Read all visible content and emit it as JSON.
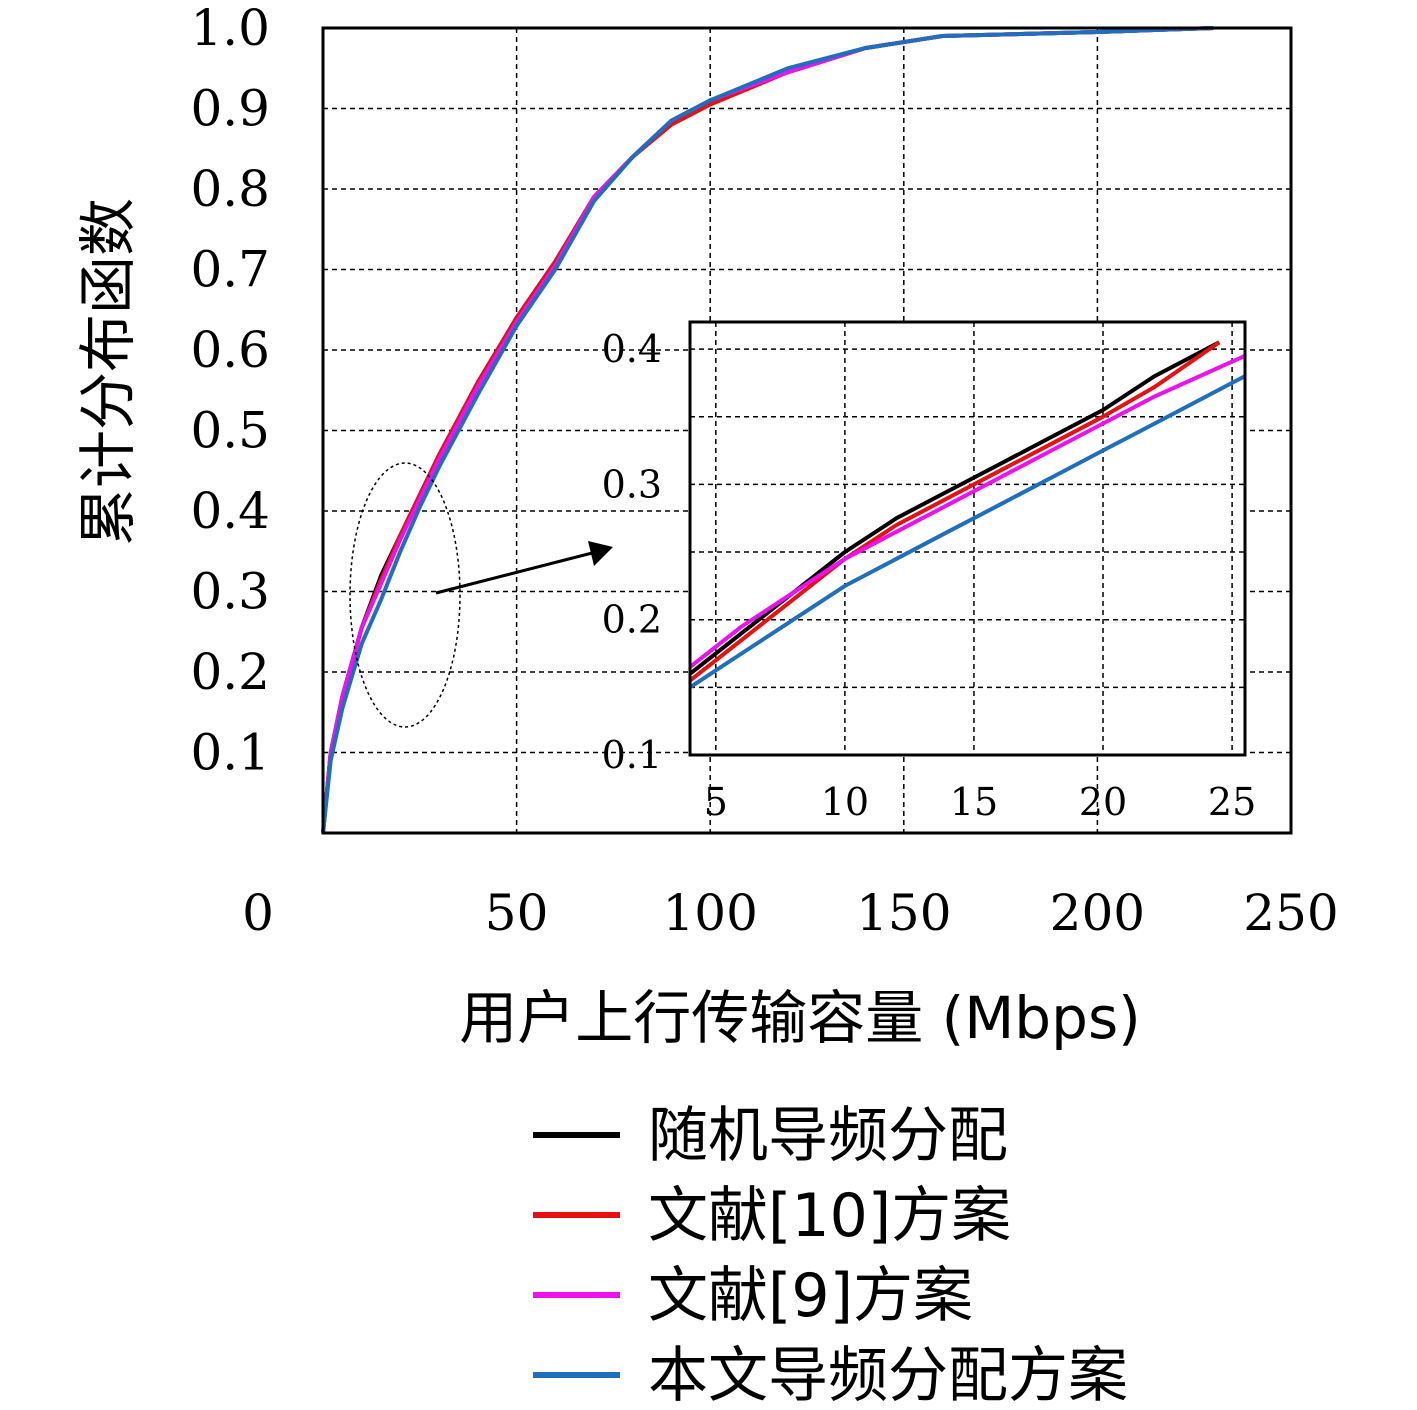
{
  "chart_data": {
    "type": "line",
    "xlabel": "用户上行传输容量 (Mbps)",
    "ylabel": "累计分布函数",
    "xlim": [
      0,
      250
    ],
    "ylim": [
      0,
      1.0
    ],
    "x_ticks": [
      "0",
      "50",
      "100",
      "150",
      "200",
      "250"
    ],
    "y_ticks": [
      "0.1",
      "0.2",
      "0.3",
      "0.4",
      "0.5",
      "0.6",
      "0.7",
      "0.8",
      "0.9",
      "1.0"
    ],
    "grid": true,
    "legend_position": "bottom",
    "series": [
      {
        "name": "随机导频分配",
        "color": "#000000",
        "x": [
          0,
          2,
          5,
          10,
          15,
          20,
          25,
          30,
          40,
          50,
          60,
          70,
          80,
          90,
          100,
          120,
          140,
          160,
          200,
          230
        ],
        "y": [
          0,
          0.1,
          0.17,
          0.255,
          0.32,
          0.37,
          0.42,
          0.47,
          0.56,
          0.64,
          0.71,
          0.79,
          0.84,
          0.885,
          0.91,
          0.945,
          0.975,
          0.99,
          0.995,
          1.0
        ]
      },
      {
        "name": "文献[10]方案",
        "color": "#e81010",
        "x": [
          0,
          2,
          5,
          10,
          15,
          20,
          25,
          30,
          40,
          50,
          60,
          70,
          80,
          90,
          100,
          120,
          140,
          160,
          200,
          230
        ],
        "y": [
          0,
          0.1,
          0.165,
          0.255,
          0.315,
          0.37,
          0.42,
          0.47,
          0.56,
          0.64,
          0.71,
          0.79,
          0.84,
          0.88,
          0.905,
          0.945,
          0.975,
          0.99,
          0.995,
          1.0
        ]
      },
      {
        "name": "文献[9]方案",
        "color": "#ee10ee",
        "x": [
          0,
          2,
          5,
          10,
          15,
          20,
          25,
          30,
          40,
          50,
          60,
          70,
          80,
          90,
          100,
          120,
          140,
          160,
          200,
          230
        ],
        "y": [
          0,
          0.1,
          0.17,
          0.255,
          0.31,
          0.365,
          0.415,
          0.465,
          0.555,
          0.635,
          0.705,
          0.79,
          0.84,
          0.885,
          0.91,
          0.945,
          0.975,
          0.99,
          0.995,
          1.0
        ]
      },
      {
        "name": "本文导频分配方案",
        "color": "#1f6fbf",
        "x": [
          0,
          2,
          5,
          10,
          15,
          20,
          25,
          30,
          40,
          50,
          60,
          70,
          80,
          90,
          100,
          120,
          140,
          160,
          200,
          230
        ],
        "y": [
          0,
          0.09,
          0.155,
          0.235,
          0.29,
          0.35,
          0.405,
          0.455,
          0.545,
          0.63,
          0.7,
          0.785,
          0.84,
          0.885,
          0.91,
          0.95,
          0.975,
          0.99,
          0.995,
          1.0
        ]
      }
    ],
    "inset": {
      "xlim": [
        4,
        25.5
      ],
      "ylim": [
        0.1,
        0.42
      ],
      "x_ticks": [
        "5",
        "10",
        "15",
        "20",
        "25"
      ],
      "y_ticks": [
        "0.1",
        "0.2",
        "0.3",
        "0.4"
      ],
      "series_values": [
        {
          "x": [
            4,
            6,
            8,
            10,
            12,
            14,
            16,
            18,
            20,
            22,
            24.5
          ],
          "y": [
            0.16,
            0.19,
            0.22,
            0.25,
            0.275,
            0.295,
            0.315,
            0.335,
            0.355,
            0.38,
            0.405
          ]
        },
        {
          "x": [
            4,
            6,
            8,
            10,
            12,
            14,
            16,
            18,
            20,
            22,
            24.5
          ],
          "y": [
            0.155,
            0.185,
            0.215,
            0.245,
            0.27,
            0.29,
            0.31,
            0.33,
            0.35,
            0.372,
            0.405
          ]
        },
        {
          "x": [
            4,
            6,
            8,
            10,
            12,
            14,
            16,
            18,
            20,
            22,
            25.5
          ],
          "y": [
            0.165,
            0.195,
            0.22,
            0.245,
            0.265,
            0.285,
            0.305,
            0.325,
            0.345,
            0.365,
            0.395
          ]
        },
        {
          "x": [
            4,
            6,
            8,
            10,
            12,
            14,
            16,
            18,
            20,
            22,
            25.5
          ],
          "y": [
            0.15,
            0.175,
            0.2,
            0.225,
            0.245,
            0.265,
            0.285,
            0.305,
            0.325,
            0.345,
            0.38
          ]
        }
      ]
    }
  }
}
